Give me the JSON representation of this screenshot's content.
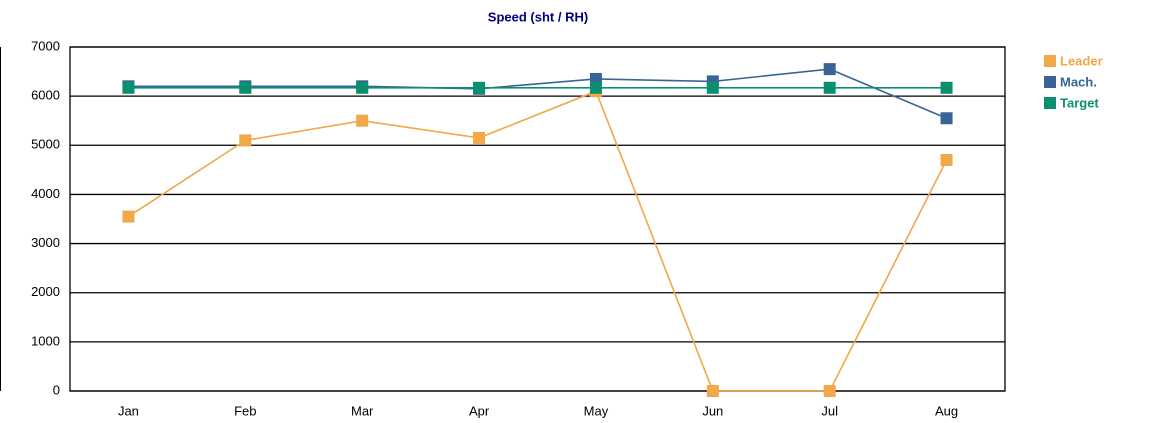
{
  "chart_data": {
    "type": "line",
    "title": "Speed (sht / RH)",
    "categories": [
      "Jan",
      "Feb",
      "Mar",
      "Apr",
      "May",
      "Jun",
      "Jul",
      "Aug"
    ],
    "series": [
      {
        "name": "Leader",
        "color": "#f0a848",
        "values": [
          3550,
          5100,
          5500,
          5150,
          6100,
          0,
          0,
          4700
        ]
      },
      {
        "name": "Mach.",
        "color": "#3b6496",
        "values": [
          6200,
          6200,
          6200,
          6150,
          6350,
          6300,
          6550,
          5550
        ]
      },
      {
        "name": "Target",
        "color": "#0a9070",
        "values": [
          6170,
          6170,
          6170,
          6170,
          6170,
          6170,
          6170,
          6170
        ]
      }
    ],
    "ylim": [
      0,
      7000
    ],
    "yticks": [
      0,
      1000,
      2000,
      3000,
      4000,
      5000,
      6000,
      7000
    ],
    "grid": true,
    "legend": "top-right"
  }
}
